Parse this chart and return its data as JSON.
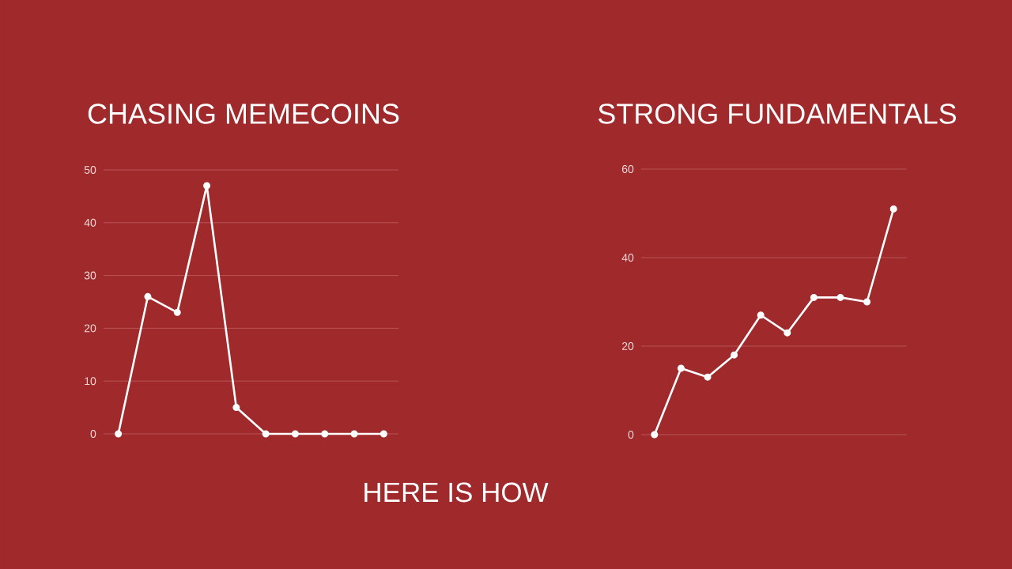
{
  "chart_data": [
    {
      "type": "line",
      "title": "CHASING MEMECOINS",
      "categories": [
        null,
        null,
        null,
        null,
        null,
        null,
        null,
        null,
        null,
        null
      ],
      "values": [
        0,
        26,
        23,
        47,
        5,
        0,
        0,
        0,
        0,
        0
      ],
      "color": "#ffffff",
      "ylim": [
        0,
        50
      ],
      "yticks": [
        0,
        10,
        20,
        30,
        40,
        50
      ],
      "grid": "y",
      "tick_labels": "y",
      "marker": "circle",
      "line_style": "solid"
    },
    {
      "type": "line",
      "title": "STRONG FUNDAMENTALS",
      "categories": [
        null,
        null,
        null,
        null,
        null,
        null,
        null,
        null,
        null,
        null
      ],
      "values": [
        0,
        15,
        13,
        18,
        27,
        23,
        31,
        31,
        30,
        51
      ],
      "color": "#ffffff",
      "ylim": [
        0,
        60
      ],
      "yticks": [
        0,
        20,
        40,
        60
      ],
      "grid": "y",
      "tick_labels": "y",
      "marker": "circle",
      "line_style": "solid"
    },
    {
      "type": "other",
      "title": "HERE IS HOW"
    }
  ]
}
